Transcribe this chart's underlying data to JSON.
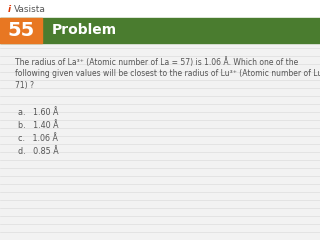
{
  "problem_number": "55",
  "header_text": "Problem",
  "header_bg_color": "#4a7c2f",
  "number_bg_color": "#e87722",
  "number_text_color": "#ffffff",
  "header_text_color": "#ffffff",
  "question_text_line1": "The radius of La³⁺ (Atomic number of La = 57) is 1.06 Å. Which one of the",
  "question_text_line2": "following given values will be closest to the radius of Lu³⁺ (Atomic number of Lu =",
  "question_text_line3": "71) ?",
  "options": [
    "a.   1.60 Å",
    "b.   1.40 Å",
    "c.   1.06 Å",
    "d.   0.85 Å"
  ],
  "text_color": "#555555",
  "line_color": "#d8d8d8",
  "background_color": "#f2f2f2",
  "logo_color": "#555555",
  "logo_i_color": "#dd3300"
}
